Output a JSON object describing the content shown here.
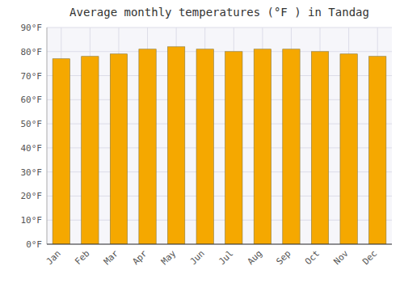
{
  "chart_data": {
    "type": "bar",
    "title": "Average monthly temperatures (°F ) in Tandag",
    "categories": [
      "Jan",
      "Feb",
      "Mar",
      "Apr",
      "May",
      "Jun",
      "Jul",
      "Aug",
      "Sep",
      "Oct",
      "Nov",
      "Dec"
    ],
    "values": [
      77,
      78,
      79,
      81,
      82,
      81,
      80,
      81,
      81,
      80,
      79,
      78
    ],
    "color": "#F5A800",
    "ylim": [
      0,
      90
    ],
    "yticks": [
      {
        "value": 0,
        "label": "0°F"
      },
      {
        "value": 10,
        "label": "10°F"
      },
      {
        "value": 20,
        "label": "20°F"
      },
      {
        "value": 30,
        "label": "30°F"
      },
      {
        "value": 40,
        "label": "40°F"
      },
      {
        "value": 50,
        "label": "50°F"
      },
      {
        "value": 60,
        "label": "60°F"
      },
      {
        "value": 70,
        "label": "70°F"
      },
      {
        "value": 80,
        "label": "80°F"
      },
      {
        "value": 90,
        "label": "90°F"
      }
    ],
    "grid": true
  }
}
